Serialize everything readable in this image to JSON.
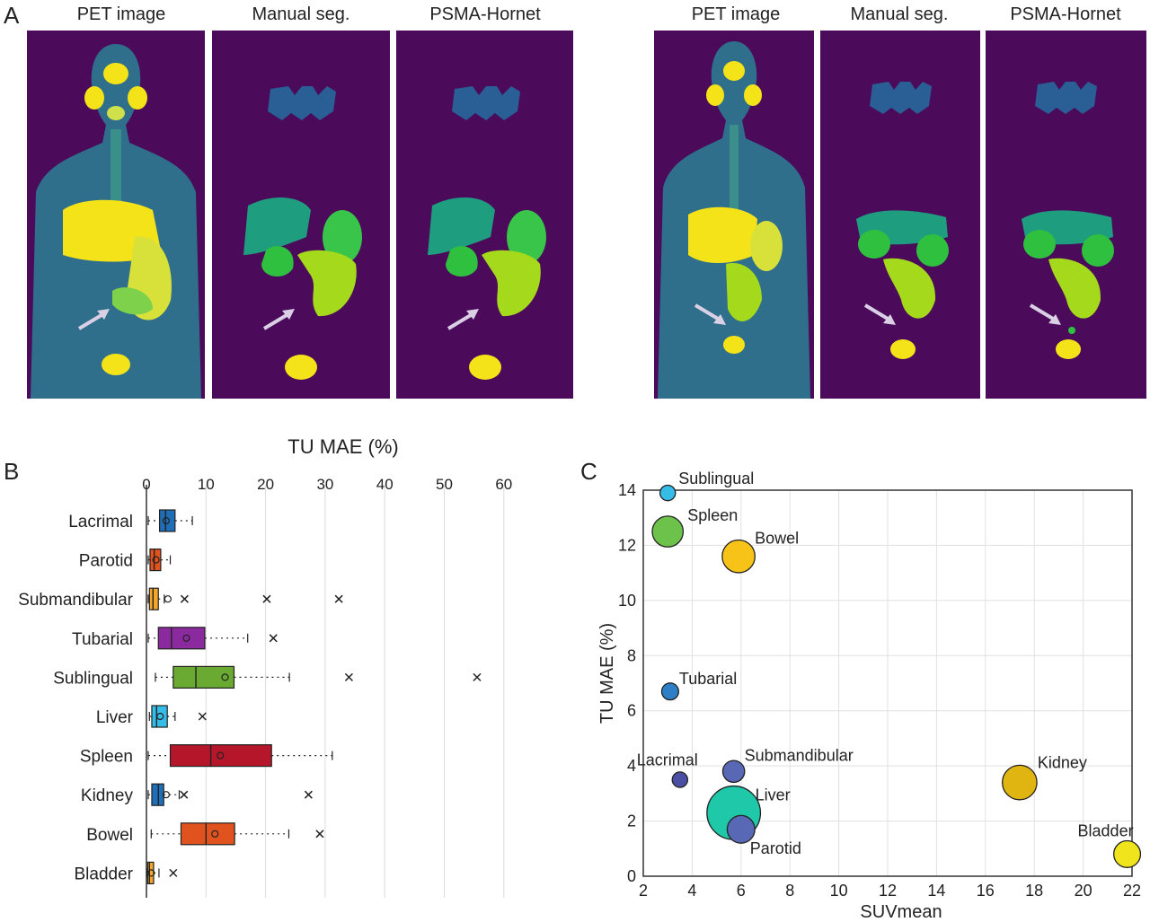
{
  "panel_labels": {
    "a": "A",
    "b": "B",
    "c": "C"
  },
  "image_titles": {
    "left": [
      "PET image",
      "Manual seg.",
      "PSMA-Hornet"
    ],
    "right": [
      "PET image",
      "Manual seg.",
      "PSMA-Hornet"
    ]
  },
  "colors": {
    "background_dark": "#4b0a5a",
    "pet_fill": "#2c7a8c",
    "yellow": "#f5e31a",
    "teal": "#1f9e7f",
    "green": "#39c44a",
    "lime": "#a5d91c",
    "blue": "#2a5f95",
    "arrow": "#d9d0e6"
  },
  "chart_data": [
    {
      "type": "box",
      "title": "TU MAE (%)",
      "orientation": "horizontal",
      "xlim": [
        0,
        60
      ],
      "xticks": [
        0,
        10,
        20,
        30,
        40,
        50,
        60
      ],
      "categories": [
        "Lacrimal",
        "Parotid",
        "Submandibular",
        "Tubarial",
        "Sublingual",
        "Liver",
        "Spleen",
        "Kidney",
        "Bowel",
        "Bladder"
      ],
      "boxes": [
        {
          "name": "Lacrimal",
          "color": "#1f6fb8",
          "whisker_low": 0.3,
          "q1": 2.2,
          "median": 3.2,
          "q3": 4.8,
          "whisker_high": 7.7,
          "mean": 3.3,
          "outliers": []
        },
        {
          "name": "Parotid",
          "color": "#e0531f",
          "whisker_low": 0.3,
          "q1": 0.6,
          "median": 1.3,
          "q3": 2.4,
          "whisker_high": 4.0,
          "mean": 1.6,
          "outliers": []
        },
        {
          "name": "Submandibular",
          "color": "#f2a72b",
          "whisker_low": 0.3,
          "q1": 0.5,
          "median": 1.1,
          "q3": 2.0,
          "whisker_high": 3.0,
          "mean": 3.6,
          "outliers": [
            6.4,
            20.2,
            32.3
          ]
        },
        {
          "name": "Tubarial",
          "color": "#8a2a9e",
          "whisker_low": 0.3,
          "q1": 2.0,
          "median": 4.2,
          "q3": 9.8,
          "whisker_high": 17.0,
          "mean": 6.7,
          "outliers": [
            21.3
          ]
        },
        {
          "name": "Sublingual",
          "color": "#6aaa33",
          "whisker_low": 1.5,
          "q1": 4.5,
          "median": 8.3,
          "q3": 14.7,
          "whisker_high": 24.0,
          "mean": 13.2,
          "outliers": [
            34.0,
            55.5
          ]
        },
        {
          "name": "Liver",
          "color": "#35bde8",
          "whisker_low": 0.5,
          "q1": 0.9,
          "median": 1.7,
          "q3": 3.5,
          "whisker_high": 4.8,
          "mean": 2.3,
          "outliers": [
            9.4
          ]
        },
        {
          "name": "Spleen",
          "color": "#b5162a",
          "whisker_low": 0.3,
          "q1": 4.0,
          "median": 10.8,
          "q3": 21.0,
          "whisker_high": 31.2,
          "mean": 12.4,
          "outliers": []
        },
        {
          "name": "Kidney",
          "color": "#1f6fb8",
          "whisker_low": 0.3,
          "q1": 0.9,
          "median": 2.0,
          "q3": 2.9,
          "whisker_high": 5.5,
          "mean": 3.3,
          "outliers": [
            6.3,
            27.2
          ]
        },
        {
          "name": "Bowel",
          "color": "#e0531f",
          "whisker_low": 0.8,
          "q1": 5.8,
          "median": 10.0,
          "q3": 14.8,
          "whisker_high": 23.9,
          "mean": 11.5,
          "outliers": [
            29.1
          ]
        },
        {
          "name": "Bladder",
          "color": "#f2a72b",
          "whisker_low": 0.1,
          "q1": 0.2,
          "median": 0.5,
          "q3": 1.2,
          "whisker_high": 2.1,
          "mean": 0.8,
          "outliers": [
            4.5
          ]
        }
      ]
    },
    {
      "type": "bubble",
      "xlabel": "SUVmean",
      "ylabel": "TU MAE (%)",
      "xlim": [
        2,
        22
      ],
      "ylim": [
        0,
        14
      ],
      "xticks": [
        2,
        4,
        6,
        8,
        10,
        12,
        14,
        16,
        18,
        20,
        22
      ],
      "yticks": [
        0,
        2,
        4,
        6,
        8,
        10,
        12,
        14
      ],
      "grid": true,
      "points": [
        {
          "label": "Sublingual",
          "x": 3.0,
          "y": 13.9,
          "size": 1,
          "color": "#35bde8"
        },
        {
          "label": "Spleen",
          "x": 3.0,
          "y": 12.5,
          "size": 4,
          "color": "#6cc24a"
        },
        {
          "label": "Bowel",
          "x": 5.9,
          "y": 11.6,
          "size": 4.5,
          "color": "#f7c318"
        },
        {
          "label": "Tubarial",
          "x": 3.1,
          "y": 6.7,
          "size": 1.2,
          "color": "#2f7fc7"
        },
        {
          "label": "Lacrimal",
          "x": 3.5,
          "y": 3.5,
          "size": 1,
          "color": "#4b4fa3"
        },
        {
          "label": "Submandibular",
          "x": 5.7,
          "y": 3.8,
          "size": 2,
          "color": "#5868b5"
        },
        {
          "label": "Liver",
          "x": 5.7,
          "y": 2.3,
          "size": 12,
          "color": "#1ec8a8"
        },
        {
          "label": "Parotid",
          "x": 6.0,
          "y": 1.7,
          "size": 3.2,
          "color": "#5868b5"
        },
        {
          "label": "Kidney",
          "x": 17.4,
          "y": 3.4,
          "size": 5,
          "color": "#e0b511"
        },
        {
          "label": "Bladder",
          "x": 21.8,
          "y": 0.8,
          "size": 3,
          "color": "#f0e51c"
        }
      ]
    }
  ]
}
